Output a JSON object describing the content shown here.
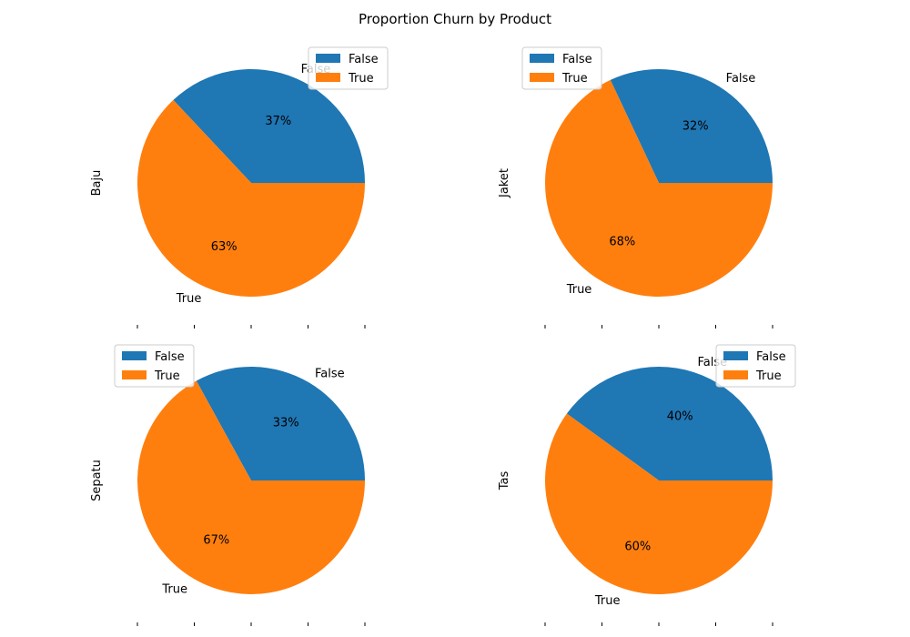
{
  "chart_data": {
    "type": "pie",
    "title": "Proportion Churn by Product",
    "colors": {
      "False": "#1f77b4",
      "True": "#ff7f0e"
    },
    "subplots": [
      {
        "ylabel": "Baju",
        "labels": [
          "False",
          "True"
        ],
        "values": [
          37,
          63
        ],
        "pct_labels": [
          "37%",
          "63%"
        ],
        "legend": "top-right"
      },
      {
        "ylabel": "Jaket",
        "labels": [
          "False",
          "True"
        ],
        "values": [
          32,
          68
        ],
        "pct_labels": [
          "32%",
          "68%"
        ],
        "legend": "top-left"
      },
      {
        "ylabel": "Sepatu",
        "labels": [
          "False",
          "True"
        ],
        "values": [
          33,
          67
        ],
        "pct_labels": [
          "33%",
          "67%"
        ],
        "legend": "top-left"
      },
      {
        "ylabel": "Tas",
        "labels": [
          "False",
          "True"
        ],
        "values": [
          40,
          60
        ],
        "pct_labels": [
          "40%",
          "60%"
        ],
        "legend": "top-right"
      }
    ]
  }
}
